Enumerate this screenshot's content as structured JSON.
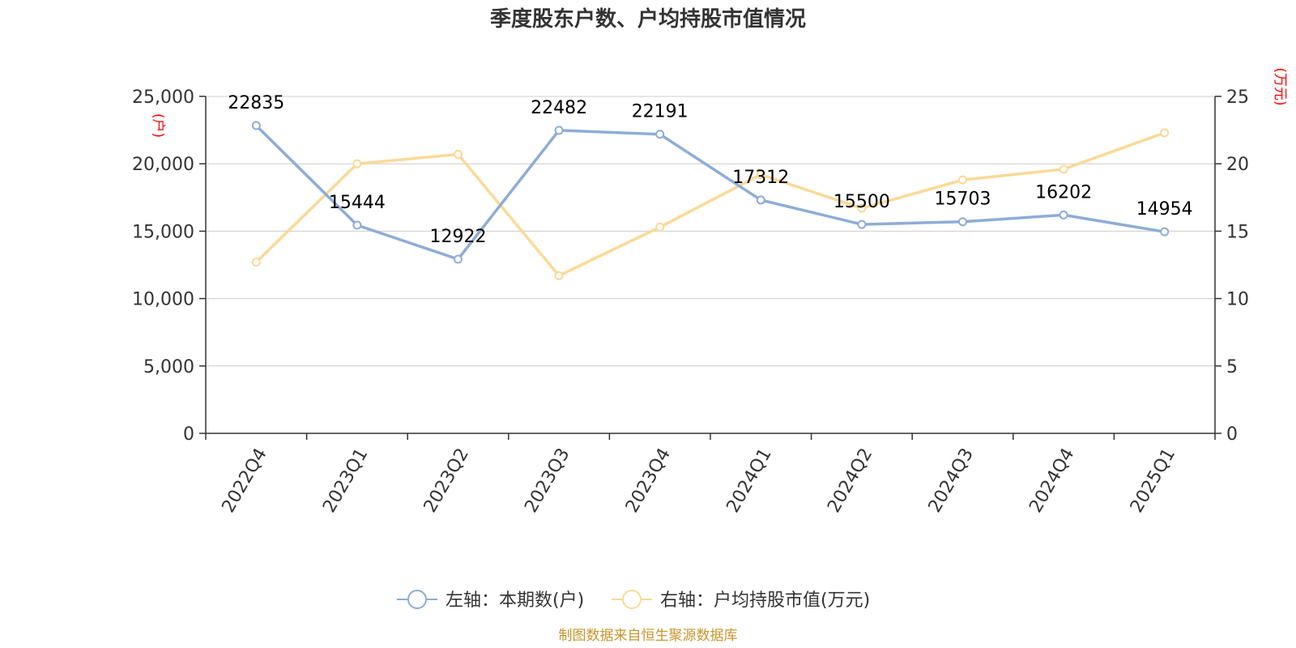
{
  "chart_data": {
    "type": "line",
    "title": "季度股东户数、户均持股市值情况",
    "categories": [
      "2022Q4",
      "2023Q1",
      "2023Q2",
      "2023Q3",
      "2023Q4",
      "2024Q1",
      "2024Q2",
      "2024Q3",
      "2024Q4",
      "2025Q1"
    ],
    "series": [
      {
        "name": "左轴：本期数(户)",
        "axis": "left",
        "color": "#8eacd6",
        "values": [
          22835,
          15444,
          12922,
          22482,
          22191,
          17312,
          15500,
          15703,
          16202,
          14954
        ],
        "labels": [
          "22835",
          "15444",
          "12922",
          "22482",
          "22191",
          "17312",
          "15500",
          "15703",
          "16202",
          "14954"
        ]
      },
      {
        "name": "右轴：户均持股市值(万元)",
        "axis": "right",
        "color": "#fcd997",
        "values": [
          12.7,
          20.0,
          20.7,
          11.7,
          15.3,
          19.2,
          16.7,
          18.8,
          19.6,
          22.3
        ]
      }
    ],
    "left_axis": {
      "unit": "(户)",
      "range": [
        0,
        25000
      ],
      "ticks": [
        0,
        5000,
        10000,
        15000,
        20000,
        25000
      ],
      "tick_labels": [
        "0",
        "5,000",
        "10,000",
        "15,000",
        "20,000",
        "25,000"
      ]
    },
    "right_axis": {
      "unit": "(万元)",
      "range": [
        0,
        25
      ],
      "ticks": [
        0,
        5,
        10,
        15,
        20,
        25
      ],
      "tick_labels": [
        "0",
        "5",
        "10",
        "15",
        "20",
        "25"
      ]
    },
    "grid": true,
    "legend_position": "bottom",
    "source": "制图数据来自恒生聚源数据库"
  }
}
